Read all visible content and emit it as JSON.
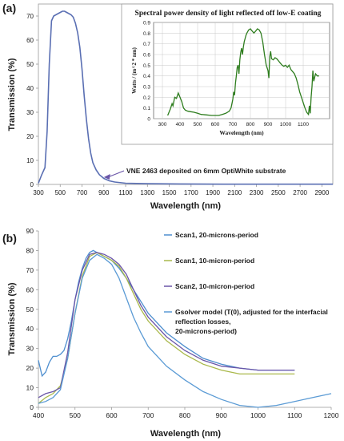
{
  "chart_data": [
    {
      "panel_label": "(a)",
      "type": "line",
      "xlabel": "Wavelength (nm)",
      "ylabel": "Transmission (%)",
      "xlim": [
        300,
        3000
      ],
      "ylim": [
        0,
        75
      ],
      "xticks": [
        "300",
        "500",
        "700",
        "900",
        "1100",
        "1300",
        "1500",
        "1700",
        "1900",
        "2100",
        "2300",
        "2500",
        "2700",
        "2900"
      ],
      "yticks": [
        "0",
        "10",
        "20",
        "30",
        "40",
        "50",
        "60",
        "70"
      ],
      "grid": false,
      "annotation": "VNE 2463 deposited on 6mm OptiWhite substrate",
      "annotation_arrow_points_to": [
        900,
        3
      ],
      "series": [
        {
          "color": "#5a6fb3",
          "x": [
            300,
            330,
            360,
            380,
            400,
            420,
            440,
            460,
            480,
            500,
            520,
            540,
            560,
            580,
            600,
            620,
            640,
            660,
            680,
            700,
            720,
            740,
            760,
            780,
            800,
            830,
            860,
            900,
            950,
            1000,
            1100,
            1300,
            1600,
            2000,
            2500,
            3000
          ],
          "y": [
            0.5,
            4,
            7,
            22,
            50,
            68,
            70,
            70.5,
            71,
            71.5,
            72,
            72,
            71.5,
            71,
            70.5,
            69.5,
            67,
            63,
            57,
            48,
            37,
            27,
            19,
            13,
            9,
            6,
            4,
            2.5,
            1.5,
            1,
            0.5,
            0.3,
            0.2,
            0.1,
            0.1,
            0.1
          ]
        }
      ],
      "inset": {
        "type": "line",
        "title": "Spectral power density of light reflected off low-E coating",
        "xlabel": "Wavelength (nm)",
        "ylabel": "Watts / (m^2 * nm)",
        "xlim": [
          250,
          1250
        ],
        "ylim": [
          0,
          0.9
        ],
        "xticks": [
          "300",
          "400",
          "500",
          "600",
          "700",
          "800",
          "900",
          "1000",
          "1100"
        ],
        "yticks": [
          "0",
          "0.1",
          "0.2",
          "0.3",
          "0.4",
          "0.5",
          "0.6",
          "0.7",
          "0.8",
          "0.9"
        ],
        "grid": true,
        "series": [
          {
            "color": "#2e7d1e",
            "x": [
              330,
              345,
              355,
              360,
              370,
              380,
              390,
              400,
              410,
              420,
              430,
              445,
              460,
              480,
              500,
              520,
              550,
              580,
              600,
              620,
              640,
              660,
              680,
              690,
              700,
              705,
              710,
              715,
              720,
              725,
              730,
              735,
              740,
              745,
              750,
              755,
              760,
              765,
              770,
              775,
              780,
              790,
              800,
              810,
              820,
              830,
              840,
              850,
              860,
              870,
              880,
              890,
              900,
              905,
              910,
              915,
              920,
              930,
              940,
              950,
              960,
              970,
              980,
              990,
              1000,
              1010,
              1020,
              1030,
              1040,
              1050,
              1060,
              1070,
              1080,
              1090,
              1100,
              1110,
              1120,
              1130,
              1135,
              1140,
              1145,
              1150,
              1155,
              1160,
              1170,
              1180,
              1190
            ],
            "y": [
              0.03,
              0.09,
              0.14,
              0.12,
              0.2,
              0.19,
              0.24,
              0.2,
              0.16,
              0.1,
              0.08,
              0.07,
              0.065,
              0.06,
              0.05,
              0.04,
              0.035,
              0.03,
              0.03,
              0.03,
              0.04,
              0.05,
              0.07,
              0.1,
              0.18,
              0.25,
              0.22,
              0.33,
              0.4,
              0.48,
              0.5,
              0.42,
              0.55,
              0.62,
              0.66,
              0.6,
              0.67,
              0.72,
              0.75,
              0.78,
              0.8,
              0.83,
              0.84,
              0.82,
              0.8,
              0.82,
              0.84,
              0.83,
              0.8,
              0.72,
              0.6,
              0.5,
              0.45,
              0.38,
              0.58,
              0.63,
              0.56,
              0.55,
              0.57,
              0.56,
              0.54,
              0.52,
              0.5,
              0.49,
              0.5,
              0.48,
              0.5,
              0.46,
              0.44,
              0.42,
              0.38,
              0.32,
              0.25,
              0.2,
              0.15,
              0.1,
              0.06,
              0.04,
              0.12,
              0.05,
              0.2,
              0.3,
              0.45,
              0.35,
              0.42,
              0.4,
              0.4
            ]
          }
        ]
      }
    },
    {
      "panel_label": "(b)",
      "type": "line",
      "xlabel": "Wavelength (nm)",
      "ylabel": "Transmission (%)",
      "xlim": [
        400,
        1200
      ],
      "ylim": [
        0,
        90
      ],
      "xticks": [
        "400",
        "500",
        "600",
        "700",
        "800",
        "900",
        "1000",
        "1100",
        "1200"
      ],
      "yticks": [
        "0",
        "10",
        "20",
        "30",
        "40",
        "50",
        "60",
        "70",
        "80",
        "90"
      ],
      "grid": false,
      "legend_position": "right",
      "series": [
        {
          "name": "Scan1, 20-microns-period",
          "color": "#4f8fcf",
          "x": [
            400,
            410,
            420,
            430,
            440,
            450,
            460,
            470,
            480,
            490,
            500,
            510,
            520,
            530,
            540,
            550,
            560,
            570,
            580,
            590,
            600,
            620,
            640,
            660,
            680,
            700,
            750,
            800,
            850,
            900,
            950,
            1000,
            1050,
            1100
          ],
          "y": [
            24,
            16,
            18,
            23,
            26,
            26,
            27,
            29,
            35,
            44,
            55,
            64,
            71,
            76,
            79,
            80,
            79,
            78,
            77,
            76,
            75,
            71,
            66,
            60,
            54,
            48,
            38,
            31,
            25,
            22,
            20,
            19,
            19,
            19
          ]
        },
        {
          "name": "Scan1, 10-micron-period",
          "color": "#a9b84a",
          "x": [
            400,
            420,
            440,
            460,
            480,
            500,
            520,
            540,
            560,
            580,
            600,
            620,
            640,
            660,
            680,
            700,
            750,
            800,
            850,
            900,
            950,
            1000,
            1050,
            1100
          ],
          "y": [
            2,
            5,
            7,
            11,
            25,
            48,
            67,
            77,
            79,
            77,
            75,
            72,
            66,
            58,
            50,
            44,
            34,
            27,
            22,
            19,
            17,
            17,
            17,
            17
          ]
        },
        {
          "name": "Scan2, 10-micron-period",
          "color": "#6a55a8",
          "x": [
            400,
            420,
            440,
            460,
            480,
            500,
            520,
            540,
            560,
            580,
            600,
            620,
            640,
            660,
            680,
            700,
            750,
            800,
            850,
            900,
            950,
            1000,
            1050,
            1100
          ],
          "y": [
            5,
            7,
            8,
            10,
            28,
            55,
            70,
            78,
            79,
            78,
            76,
            73,
            68,
            60,
            52,
            46,
            36,
            29,
            24,
            21,
            20,
            19,
            19,
            19
          ]
        },
        {
          "name": "Gsolver model (T(0), adjusted for the interfacial reflection losses, 20-microns-period)",
          "color": "#5b9bd5",
          "x": [
            400,
            420,
            440,
            460,
            480,
            500,
            520,
            540,
            560,
            580,
            600,
            620,
            640,
            660,
            680,
            700,
            750,
            800,
            850,
            900,
            950,
            1000,
            1050,
            1100,
            1150,
            1200
          ],
          "y": [
            2,
            3,
            5,
            9,
            25,
            48,
            66,
            75,
            78,
            76,
            73,
            66,
            56,
            46,
            38,
            31,
            21,
            14,
            8,
            4,
            1,
            0,
            1,
            3,
            5,
            7
          ]
        }
      ]
    }
  ]
}
